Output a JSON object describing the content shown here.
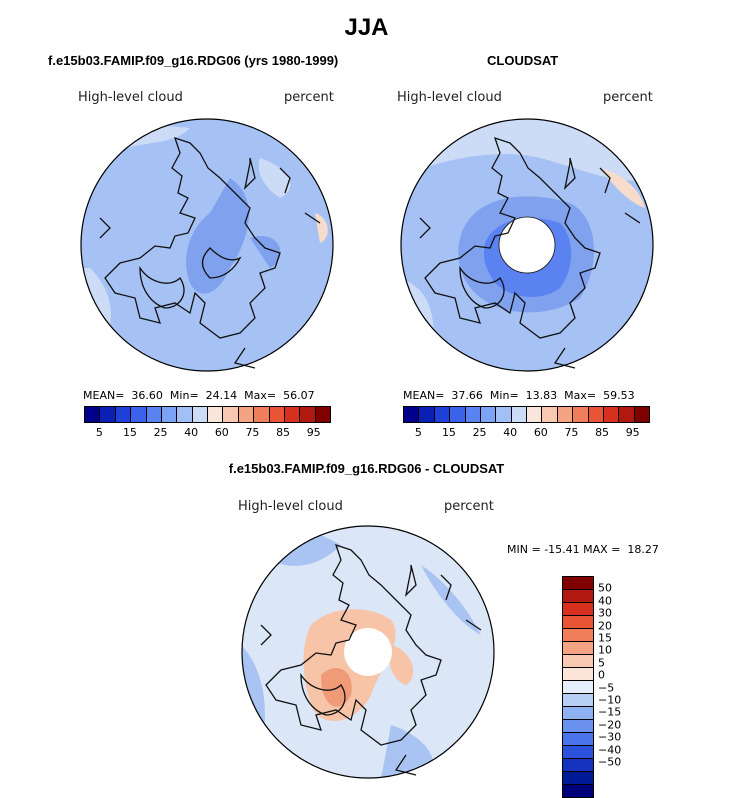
{
  "figure": {
    "season": "JJA"
  },
  "panels": [
    {
      "title": "f.e15b03.FAMIP.f09_g16.RDG06 (yrs 1980-1999)",
      "variable": "High-level cloud",
      "units": "percent",
      "stats": {
        "mean_label": "MEAN=",
        "mean": "36.60",
        "min_label": "Min=",
        "min": "24.14",
        "max_label": "Max=",
        "max": "56.07"
      }
    },
    {
      "title": "CLOUDSAT",
      "variable": "High-level cloud",
      "units": "percent",
      "stats": {
        "mean_label": "MEAN=",
        "mean": "37.66",
        "min_label": "Min=",
        "min": "13.83",
        "max_label": "Max=",
        "max": "59.53"
      }
    },
    {
      "title": "f.e15b03.FAMIP.f09_g16.RDG06 - CLOUDSAT",
      "variable": "High-level cloud",
      "units": "percent",
      "stats": {
        "min_label": "MIN =",
        "min": "-15.41",
        "max_label": "MAX =",
        "max": "18.27"
      }
    }
  ],
  "colorbar_abs": {
    "colors": [
      "#00008b",
      "#0a1fb4",
      "#1e40d8",
      "#3a62ea",
      "#5a82f0",
      "#7ca2f4",
      "#a3c0f6",
      "#cddcf6",
      "#f8e6dc",
      "#f8c8b0",
      "#f4a482",
      "#f07e5a",
      "#e85434",
      "#d8301e",
      "#b01810",
      "#800000"
    ],
    "ticks": [
      "5",
      "15",
      "25",
      "40",
      "60",
      "75",
      "85",
      "95"
    ]
  },
  "colorbar_diff": {
    "colors": [
      "#800000",
      "#b01810",
      "#d8301e",
      "#e85434",
      "#f07e5a",
      "#f4a482",
      "#f8c8b0",
      "#fbe4d8",
      "#e4eefc",
      "#b8cff5",
      "#8fb0f1",
      "#6a92ee",
      "#4a74ea",
      "#2a52dc",
      "#1434c0",
      "#001a96",
      "#00007a"
    ],
    "ticks": [
      "50",
      "40",
      "30",
      "20",
      "15",
      "10",
      "5",
      "0",
      "−5",
      "−10",
      "−15",
      "−20",
      "−30",
      "−40",
      "−50"
    ]
  },
  "map_colors": {
    "base_abs": "#a6c2f4",
    "light_abs": "#cddcf6",
    "mid_abs": "#7fa1ee",
    "dark_abs": "#5a82f0",
    "warm_abs": "#f7dccb",
    "base_diff": "#dbe6f7",
    "warm_diff": "#f8c4a8",
    "hot_diff": "#f09a78",
    "cool_diff": "#a9c3f2",
    "coast": "#111111"
  }
}
